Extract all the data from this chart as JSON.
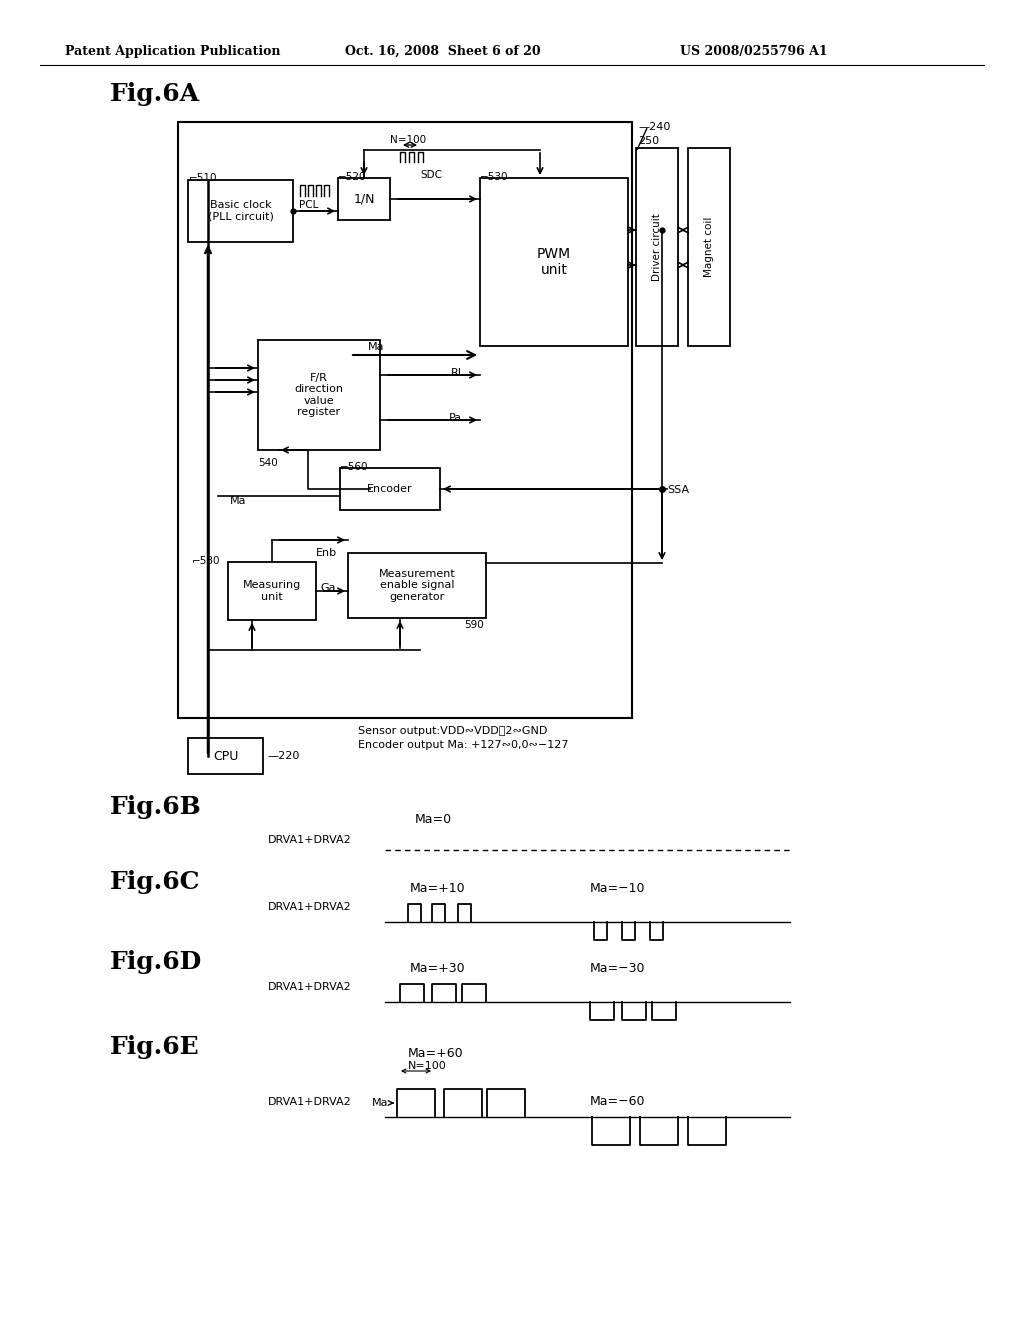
{
  "bg_color": "#ffffff",
  "header_text": "Patent Application Publication",
  "header_date": "Oct. 16, 2008  Sheet 6 of 20",
  "header_patent": "US 2008/0255796 A1",
  "fig6a_label": "Fig.6A",
  "fig6b_label": "Fig.6B",
  "fig6c_label": "Fig.6C",
  "fig6d_label": "Fig.6D",
  "fig6e_label": "Fig.6E",
  "black": "#000000"
}
